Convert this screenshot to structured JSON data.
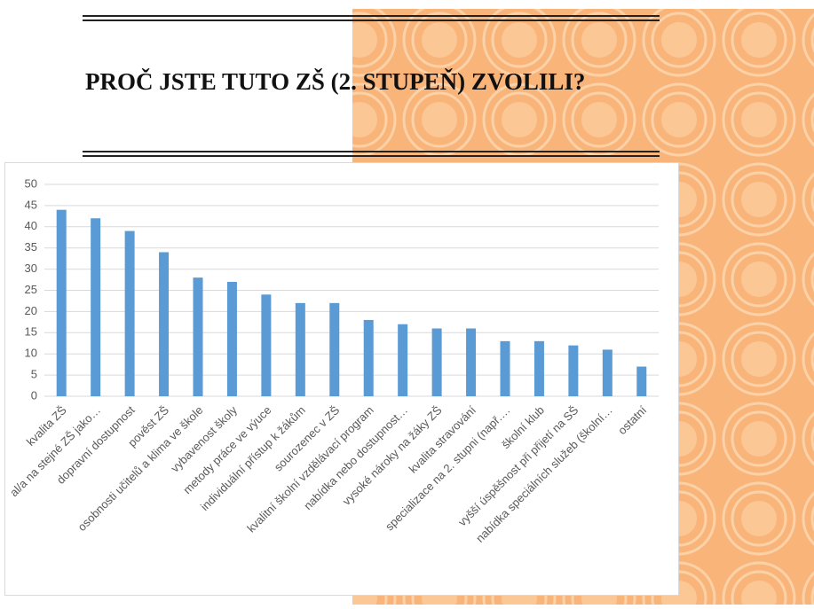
{
  "header": {
    "title": "PROČ JSTE TUTO ZŠ (2. STUPEŇ) ZVOLILI?"
  },
  "chart_data": {
    "type": "bar",
    "categories": [
      "kvalita ZŠ",
      "al/a na stejné ZŠ jako…",
      "dopravní dostupnost",
      "pověst ZŠ",
      "osobnosti učitelů a klima ve škole",
      "vybavenost školy",
      "metody práce ve výuce",
      "individuální přístup k žákům",
      "sourozenec v ZŠ",
      "kvalitní školní vzdělávací program",
      "nabídka nebo dostupnost…",
      "vysoké nároky na žáky ZŠ",
      "kvalita stravování",
      "specializace na 2. stupni (např.…",
      "školní klub",
      "vyšší úspěšnost při přijetí na SŠ",
      "nabídka speciálních služeb (školní…",
      "ostatní"
    ],
    "values": [
      44,
      42,
      39,
      34,
      28,
      27,
      24,
      22,
      22,
      18,
      17,
      16,
      16,
      13,
      13,
      12,
      11,
      7
    ],
    "color": "#5b9bd5",
    "ylim": [
      0,
      50
    ],
    "yticks": [
      0,
      5,
      10,
      15,
      20,
      25,
      30,
      35,
      40,
      45,
      50
    ],
    "grid": true
  }
}
